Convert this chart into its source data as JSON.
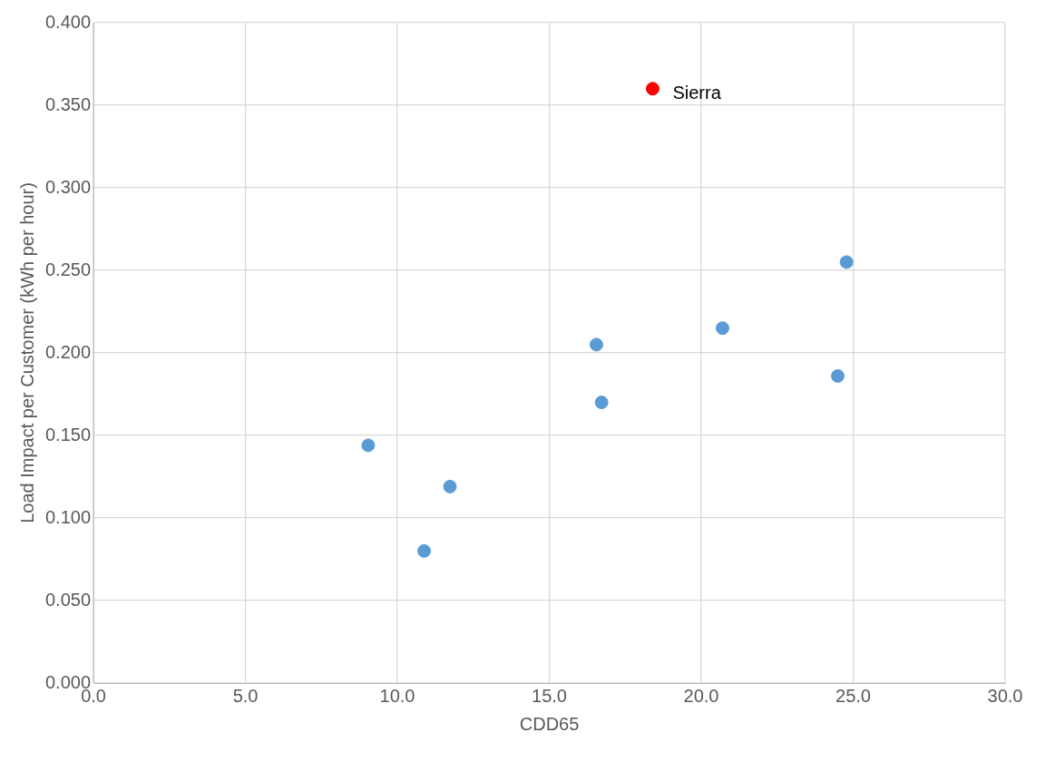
{
  "chart_data": {
    "type": "scatter",
    "xlabel": "CDD65",
    "ylabel": "Load Impact per Customer (kWh per hour)",
    "series": [
      {
        "color": "#5b9bd5",
        "x": [
          9.04,
          10.88,
          11.73,
          16.55,
          16.72,
          20.7,
          24.49,
          24.78
        ],
        "values": [
          0.144,
          0.08,
          0.119,
          0.205,
          0.17,
          0.215,
          0.186,
          0.255
        ]
      },
      {
        "color": "#ff0000",
        "x": [
          18.4
        ],
        "values": [
          0.36
        ]
      }
    ],
    "annotations": [
      {
        "text": "Sierra",
        "x": 18.4,
        "y": 0.36
      }
    ],
    "xlim": [
      0,
      30
    ],
    "xticks": [
      {
        "value": 0,
        "label": "0.0"
      },
      {
        "value": 5,
        "label": "5.0"
      },
      {
        "value": 10,
        "label": "10.0"
      },
      {
        "value": 15,
        "label": "15.0"
      },
      {
        "value": 20,
        "label": "20.0"
      },
      {
        "value": 25,
        "label": "25.0"
      },
      {
        "value": 30,
        "label": "30.0"
      }
    ],
    "ylim": [
      0,
      0.4
    ],
    "yticks": [
      {
        "value": 0,
        "label": "0.000"
      },
      {
        "value": 0.05,
        "label": "0.050"
      },
      {
        "value": 0.1,
        "label": "0.100"
      },
      {
        "value": 0.15,
        "label": "0.150"
      },
      {
        "value": 0.2,
        "label": "0.200"
      },
      {
        "value": 0.25,
        "label": "0.250"
      },
      {
        "value": 0.3,
        "label": "0.300"
      },
      {
        "value": 0.35,
        "label": "0.350"
      },
      {
        "value": 0.4,
        "label": "0.400"
      }
    ],
    "grid": true,
    "marker": "circle",
    "legend": false
  }
}
